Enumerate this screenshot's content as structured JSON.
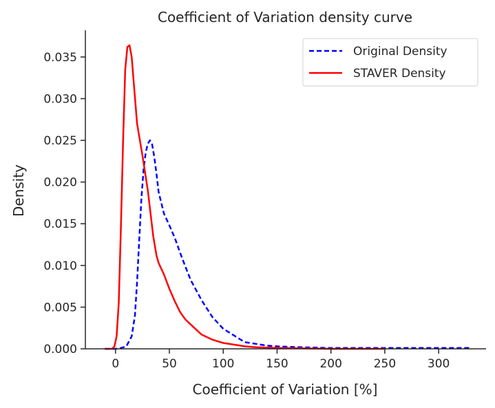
{
  "chart_data": {
    "type": "line",
    "title": "Coefficient of Variation density curve",
    "xlabel": "Coefficient of Variation [%]",
    "ylabel": "Density",
    "xlim": [
      -28,
      344
    ],
    "ylim": [
      0,
      0.0382
    ],
    "xticks": [
      0,
      50,
      100,
      150,
      200,
      250,
      300
    ],
    "xtick_labels": [
      "0",
      "50",
      "100",
      "150",
      "200",
      "250",
      "300"
    ],
    "yticks": [
      0,
      0.005,
      0.01,
      0.015,
      0.02,
      0.025,
      0.03,
      0.035
    ],
    "ytick_labels": [
      "0.000",
      "0.005",
      "0.010",
      "0.015",
      "0.020",
      "0.025",
      "0.030",
      "0.035"
    ],
    "grid": false,
    "legend_position": "top-right",
    "series": [
      {
        "name": "Original Density",
        "color": "#0000ff",
        "linestyle": "dashed",
        "x": [
          -10,
          0,
          5,
          10,
          15,
          18,
          20,
          22,
          24,
          26,
          28,
          30,
          32,
          34,
          36,
          38,
          40,
          45,
          50,
          55,
          60,
          65,
          70,
          80,
          90,
          100,
          110,
          115,
          120,
          125,
          130,
          140,
          150,
          170,
          200,
          250,
          300,
          330
        ],
        "y": [
          0.0,
          0.0,
          0.0001,
          0.0003,
          0.0015,
          0.004,
          0.008,
          0.013,
          0.018,
          0.0215,
          0.0235,
          0.0246,
          0.025,
          0.0245,
          0.023,
          0.021,
          0.0188,
          0.0162,
          0.0148,
          0.0133,
          0.0115,
          0.0098,
          0.0082,
          0.0058,
          0.0038,
          0.0024,
          0.0016,
          0.0012,
          0.0008,
          0.0007,
          0.0006,
          0.0004,
          0.0003,
          0.0002,
          0.0001,
          0.0001,
          0.0001,
          0.0001
        ]
      },
      {
        "name": "STAVER Density",
        "color": "#ff0000",
        "linestyle": "solid",
        "x": [
          -10,
          -3,
          -1,
          1,
          3,
          5,
          7,
          9,
          11,
          13,
          15,
          17,
          20,
          25,
          30,
          35,
          38,
          40,
          45,
          50,
          55,
          60,
          65,
          70,
          80,
          90,
          100,
          110,
          120,
          130,
          150,
          200,
          250
        ],
        "y": [
          0.0,
          0.0,
          0.0003,
          0.0015,
          0.0055,
          0.0145,
          0.025,
          0.0335,
          0.0362,
          0.0364,
          0.035,
          0.0318,
          0.027,
          0.0232,
          0.019,
          0.0135,
          0.0112,
          0.0103,
          0.0089,
          0.0072,
          0.0057,
          0.0044,
          0.0035,
          0.0029,
          0.0017,
          0.0011,
          0.0007,
          0.0005,
          0.0003,
          0.0002,
          0.0001,
          0.0,
          0.0
        ]
      }
    ]
  }
}
